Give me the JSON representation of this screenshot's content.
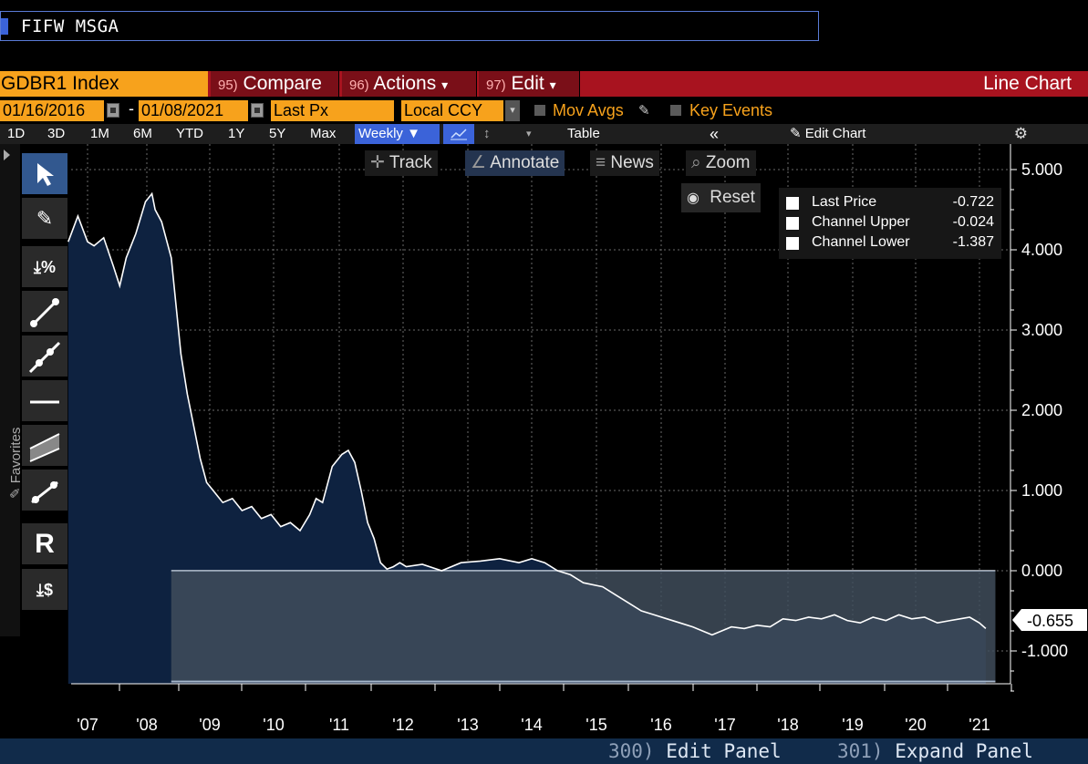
{
  "command": {
    "text": "FIFW MSGA"
  },
  "menubar": {
    "ticker": "GDBR1 Index",
    "compare": {
      "num": "95)",
      "label": "Compare"
    },
    "actions": {
      "num": "96)",
      "label": "Actions",
      "arrow": "▾"
    },
    "edit": {
      "num": "97)",
      "label": "Edit",
      "arrow": "▾"
    },
    "chart_type": "Line Chart"
  },
  "settings": {
    "start_date": "01/16/2016",
    "dash": "-",
    "end_date": "01/08/2021",
    "field": "Last Px",
    "currency": "Local CCY",
    "mov_avgs": "Mov Avgs",
    "key_events": "Key Events"
  },
  "range": {
    "buttons": [
      "1D",
      "3D",
      "1M",
      "6M",
      "YTD",
      "1Y",
      "5Y",
      "Max"
    ],
    "period": "Weekly ▼",
    "table": "Table",
    "collapse": "«",
    "edit_chart": "Edit Chart",
    "gear": "⚙"
  },
  "chart_buttons": {
    "track": "Track",
    "annotate": "Annotate",
    "news": "News",
    "zoom": "Zoom",
    "reset": "Reset"
  },
  "toolbar": {
    "favorites": "Favorites"
  },
  "legend": [
    {
      "name": "Last Price",
      "value": "-0.722"
    },
    {
      "name": "Channel Upper",
      "value": "-0.024"
    },
    {
      "name": "Channel Lower",
      "value": "-1.387"
    }
  ],
  "chart_data": {
    "type": "area",
    "x_ticks": [
      "'07",
      "'08",
      "'09",
      "'10",
      "'11",
      "'12",
      "'13",
      "'14",
      "'15",
      "'16",
      "'17",
      "'18",
      "'19",
      "'20",
      "'21"
    ],
    "y_ticks": [
      "5.000",
      "4.000",
      "3.000",
      "2.000",
      "1.000",
      "0.000",
      "-1.000"
    ],
    "ylim": [
      -1.5,
      5.0
    ],
    "xlim": [
      2006.7,
      2021.1
    ],
    "last_value_label": "-0.655",
    "series": [
      {
        "x": [
          2006.7,
          2006.85,
          2007.0,
          2007.1,
          2007.25,
          2007.4,
          2007.5,
          2007.6,
          2007.75,
          2007.9,
          2008.0,
          2008.05,
          2008.15,
          2008.3,
          2008.45,
          2008.55,
          2008.65,
          2008.75,
          2008.85,
          2008.95,
          2009.0,
          2009.1,
          2009.25,
          2009.4,
          2009.55,
          2009.7,
          2009.85,
          2010.0,
          2010.15,
          2010.3,
          2010.45,
          2010.55,
          2010.65,
          2010.8,
          2010.95,
          2011.05,
          2011.15,
          2011.25,
          2011.35,
          2011.45,
          2011.55,
          2011.65,
          2011.75,
          2011.85,
          2011.95,
          2012.2,
          2012.5,
          2012.8,
          2013.1,
          2013.4,
          2013.7,
          2013.9,
          2014.1,
          2014.3,
          2014.5,
          2014.7,
          2015.0,
          2015.2,
          2015.4,
          2015.6,
          2015.8,
          2016.0,
          2016.2,
          2016.4,
          2016.55,
          2016.7,
          2016.85,
          2017.0,
          2017.2,
          2017.4,
          2017.6,
          2017.8,
          2018.0,
          2018.2,
          2018.4,
          2018.6,
          2018.8,
          2019.0,
          2019.2,
          2019.4,
          2019.6,
          2019.8,
          2020.0,
          2020.2,
          2020.4,
          2020.55,
          2020.7,
          2020.85,
          2020.95
        ],
        "y": [
          4.1,
          4.42,
          4.1,
          4.05,
          4.15,
          3.8,
          3.55,
          3.9,
          4.2,
          4.6,
          4.7,
          4.5,
          4.35,
          3.9,
          2.7,
          2.2,
          1.8,
          1.4,
          1.1,
          1.0,
          0.95,
          0.85,
          0.9,
          0.75,
          0.8,
          0.65,
          0.7,
          0.55,
          0.6,
          0.5,
          0.7,
          0.9,
          0.85,
          1.3,
          1.45,
          1.5,
          1.35,
          1.0,
          0.6,
          0.4,
          0.1,
          0.02,
          0.05,
          0.1,
          0.05,
          0.08,
          0.0,
          0.1,
          0.12,
          0.15,
          0.1,
          0.15,
          0.1,
          0.0,
          -0.05,
          -0.15,
          -0.2,
          -0.3,
          -0.4,
          -0.5,
          -0.55,
          -0.6,
          -0.65,
          -0.7,
          -0.75,
          -0.8,
          -0.75,
          -0.7,
          -0.72,
          -0.68,
          -0.7,
          -0.6,
          -0.62,
          -0.58,
          -0.6,
          -0.55,
          -0.62,
          -0.65,
          -0.58,
          -0.62,
          -0.55,
          -0.6,
          -0.58,
          -0.65,
          -0.62,
          -0.6,
          -0.58,
          -0.65,
          -0.72
        ]
      },
      {
        "name": "Channel Upper",
        "x": [
          2008.3,
          2021.1
        ],
        "y": [
          0.0,
          0.0
        ]
      },
      {
        "name": "Channel Lower",
        "x": [
          2008.3,
          2021.1
        ],
        "y": [
          -1.38,
          -1.38
        ]
      }
    ]
  }
}
